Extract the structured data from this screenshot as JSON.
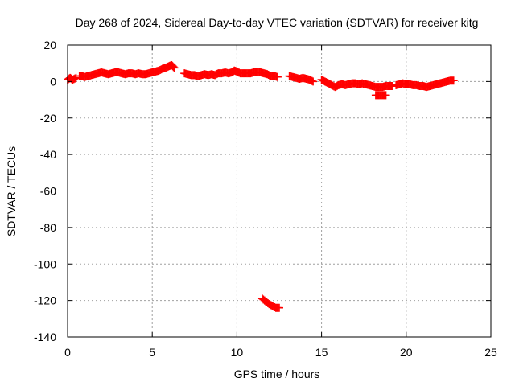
{
  "chart_data": {
    "type": "scatter",
    "title": "Day 268 of 2024, Sidereal Day-to-day VTEC variation (SDTVAR) for receiver kitg",
    "xlabel": "GPS time / hours",
    "ylabel": "SDTVAR / TECUs",
    "xlim": [
      0,
      25
    ],
    "ylim": [
      -140,
      20
    ],
    "xticks": [
      0,
      5,
      10,
      15,
      20,
      25
    ],
    "yticks": [
      -140,
      -120,
      -100,
      -80,
      -60,
      -40,
      -20,
      0,
      20
    ],
    "grid": true,
    "marker": "plus",
    "color": "#ff0000",
    "segments": [
      [
        [
          0.0,
          1
        ],
        [
          0.15,
          2
        ],
        [
          0.3,
          1
        ],
        [
          0.5,
          2
        ]
      ],
      [
        [
          0.7,
          3
        ],
        [
          0.85,
          3
        ],
        [
          1.0,
          2.5
        ],
        [
          1.2,
          3
        ],
        [
          1.4,
          3.5
        ],
        [
          1.6,
          4
        ],
        [
          1.8,
          4.5
        ],
        [
          2.0,
          5
        ],
        [
          2.2,
          4.5
        ],
        [
          2.4,
          4
        ],
        [
          2.6,
          4.5
        ],
        [
          2.8,
          5
        ],
        [
          3.0,
          5
        ],
        [
          3.2,
          4.5
        ],
        [
          3.4,
          4
        ],
        [
          3.6,
          4.5
        ],
        [
          3.8,
          4.5
        ],
        [
          4.0,
          4
        ],
        [
          4.2,
          4.5
        ],
        [
          4.4,
          4
        ],
        [
          4.6,
          4
        ],
        [
          4.8,
          4.5
        ],
        [
          5.0,
          5
        ],
        [
          5.2,
          5.5
        ],
        [
          5.4,
          6
        ],
        [
          5.6,
          7
        ],
        [
          5.8,
          7.5
        ],
        [
          6.0,
          8.5
        ],
        [
          6.15,
          9
        ],
        [
          6.3,
          7.5
        ]
      ],
      [
        [
          6.9,
          4.5
        ],
        [
          7.1,
          4
        ],
        [
          7.3,
          3.5
        ],
        [
          7.5,
          3.5
        ],
        [
          7.7,
          3
        ],
        [
          7.9,
          3.5
        ],
        [
          8.1,
          4
        ],
        [
          8.3,
          3.5
        ],
        [
          8.5,
          4
        ],
        [
          8.7,
          3.5
        ],
        [
          8.9,
          4.5
        ],
        [
          9.1,
          4.5
        ],
        [
          9.3,
          5
        ],
        [
          9.5,
          4.5
        ],
        [
          9.7,
          5
        ],
        [
          9.85,
          6
        ],
        [
          10.0,
          5.5
        ],
        [
          10.2,
          4.5
        ],
        [
          10.4,
          4.5
        ],
        [
          10.6,
          4.5
        ],
        [
          10.8,
          4.5
        ],
        [
          11.0,
          5
        ],
        [
          11.2,
          5
        ],
        [
          11.4,
          5
        ],
        [
          11.6,
          4.5
        ],
        [
          11.8,
          4
        ],
        [
          12.0,
          3
        ],
        [
          12.2,
          3
        ],
        [
          12.4,
          2.5
        ]
      ],
      [
        [
          11.5,
          -119
        ],
        [
          11.7,
          -120.5
        ],
        [
          11.9,
          -122
        ],
        [
          12.1,
          -123
        ],
        [
          12.3,
          -124
        ],
        [
          12.5,
          -124
        ]
      ],
      [
        [
          13.1,
          3
        ],
        [
          13.3,
          2.5
        ],
        [
          13.5,
          2
        ],
        [
          13.7,
          1.5
        ],
        [
          13.9,
          2
        ],
        [
          14.1,
          1.5
        ],
        [
          14.3,
          1
        ],
        [
          14.5,
          0
        ]
      ],
      [
        [
          15.0,
          1
        ],
        [
          15.2,
          0
        ],
        [
          15.4,
          -1
        ],
        [
          15.6,
          -2
        ],
        [
          15.8,
          -3
        ],
        [
          16.0,
          -2
        ],
        [
          16.2,
          -1.5
        ],
        [
          16.4,
          -2
        ],
        [
          16.6,
          -1.5
        ],
        [
          16.8,
          -1
        ],
        [
          17.0,
          -1
        ],
        [
          17.2,
          -1.5
        ],
        [
          17.4,
          -1
        ],
        [
          17.6,
          -1.5
        ],
        [
          17.8,
          -2
        ],
        [
          18.0,
          -2.5
        ],
        [
          18.2,
          -3
        ],
        [
          18.4,
          -3
        ],
        [
          18.6,
          -3
        ],
        [
          18.8,
          -2.5
        ],
        [
          19.0,
          -2.5
        ],
        [
          19.2,
          -2.5
        ]
      ],
      [
        [
          18.2,
          -7.5
        ],
        [
          18.4,
          -7.5
        ],
        [
          18.6,
          -7.5
        ],
        [
          18.8,
          -7.5
        ]
      ],
      [
        [
          19.4,
          -2
        ],
        [
          19.6,
          -1.5
        ],
        [
          19.8,
          -1
        ],
        [
          20.0,
          -1.5
        ],
        [
          20.2,
          -1.5
        ],
        [
          20.4,
          -2
        ],
        [
          20.6,
          -2
        ],
        [
          20.8,
          -2.5
        ],
        [
          21.0,
          -2.5
        ],
        [
          21.2,
          -3
        ],
        [
          21.4,
          -2.5
        ],
        [
          21.6,
          -2
        ],
        [
          21.8,
          -1.5
        ],
        [
          22.0,
          -1
        ],
        [
          22.2,
          -0.5
        ],
        [
          22.4,
          0
        ],
        [
          22.6,
          0.5
        ],
        [
          22.8,
          0.5
        ]
      ]
    ]
  }
}
